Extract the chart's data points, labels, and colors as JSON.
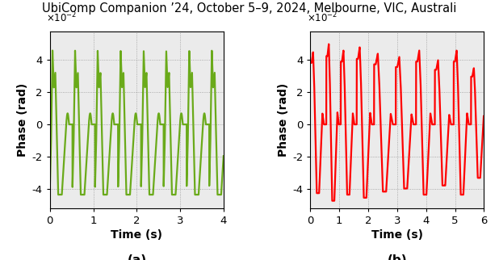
{
  "title": "UbiComp Companion ’24, October 5–9, 2024, Melbourne, VIC, Australi",
  "title_fontsize": 10.5,
  "label_a": "(a)",
  "label_b": "(b)",
  "green_color": "#6aaa1a",
  "red_color": "#ff0000",
  "background_color": "#ebebeb",
  "dot_color": "#999999",
  "ylabel": "Phase (rad)",
  "xlabel": "Time (s)",
  "xlim_a": [
    0,
    4
  ],
  "xlim_b": [
    0,
    6
  ],
  "ylim": [
    -0.052,
    0.058
  ],
  "yticks": [
    -0.04,
    -0.02,
    0,
    0.02,
    0.04
  ],
  "xticks_a": [
    0,
    1,
    2,
    3,
    4
  ],
  "xticks_b": [
    0,
    1,
    2,
    3,
    4,
    5,
    6
  ],
  "linewidth": 1.6
}
